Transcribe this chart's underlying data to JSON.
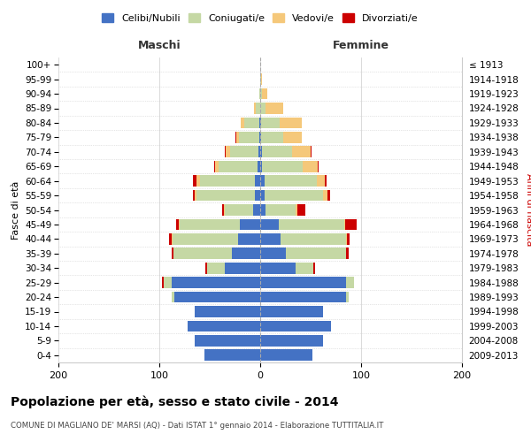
{
  "age_groups": [
    "0-4",
    "5-9",
    "10-14",
    "15-19",
    "20-24",
    "25-29",
    "30-34",
    "35-39",
    "40-44",
    "45-49",
    "50-54",
    "55-59",
    "60-64",
    "65-69",
    "70-74",
    "75-79",
    "80-84",
    "85-89",
    "90-94",
    "95-99",
    "100+"
  ],
  "birth_years": [
    "2009-2013",
    "2004-2008",
    "1999-2003",
    "1994-1998",
    "1989-1993",
    "1984-1988",
    "1979-1983",
    "1974-1978",
    "1969-1973",
    "1964-1968",
    "1959-1963",
    "1954-1958",
    "1949-1953",
    "1944-1948",
    "1939-1943",
    "1934-1938",
    "1929-1933",
    "1924-1928",
    "1919-1923",
    "1914-1918",
    "≤ 1913"
  ],
  "maschi": {
    "celibi": [
      55,
      65,
      72,
      65,
      85,
      88,
      35,
      28,
      22,
      20,
      7,
      5,
      5,
      3,
      2,
      1,
      1,
      0,
      0,
      0,
      0
    ],
    "coniugati": [
      0,
      0,
      0,
      0,
      3,
      8,
      18,
      58,
      65,
      60,
      28,
      58,
      55,
      38,
      28,
      20,
      15,
      4,
      1,
      0,
      0
    ],
    "vedovi": [
      0,
      0,
      0,
      0,
      0,
      0,
      0,
      0,
      1,
      1,
      1,
      2,
      3,
      4,
      4,
      3,
      3,
      2,
      0,
      0,
      0
    ],
    "divorziati": [
      0,
      0,
      0,
      0,
      0,
      1,
      1,
      2,
      2,
      2,
      2,
      2,
      4,
      1,
      1,
      1,
      0,
      0,
      0,
      0,
      0
    ]
  },
  "femmine": {
    "nubili": [
      52,
      62,
      70,
      62,
      85,
      85,
      35,
      25,
      20,
      18,
      5,
      4,
      4,
      2,
      2,
      1,
      1,
      0,
      0,
      0,
      0
    ],
    "coniugate": [
      0,
      0,
      0,
      0,
      3,
      8,
      18,
      60,
      65,
      65,
      30,
      58,
      52,
      40,
      30,
      22,
      18,
      5,
      2,
      1,
      0
    ],
    "vedove": [
      0,
      0,
      0,
      0,
      0,
      0,
      0,
      0,
      1,
      1,
      2,
      5,
      8,
      15,
      18,
      18,
      22,
      18,
      5,
      1,
      0
    ],
    "divorziate": [
      0,
      0,
      0,
      0,
      0,
      0,
      1,
      3,
      3,
      12,
      8,
      2,
      2,
      1,
      1,
      0,
      0,
      0,
      0,
      0,
      0
    ]
  },
  "colors": {
    "celibi": "#4472c4",
    "coniugati": "#c5d8a4",
    "vedovi": "#f5c87a",
    "divorziati": "#cc0000"
  },
  "xlim": [
    -200,
    200
  ],
  "xticks": [
    -200,
    -100,
    0,
    100,
    200
  ],
  "xtick_labels": [
    "200",
    "100",
    "0",
    "100",
    "200"
  ],
  "title": "Popolazione per età, sesso e stato civile - 2014",
  "subtitle": "COMUNE DI MAGLIANO DE' MARSI (AQ) - Dati ISTAT 1° gennaio 2014 - Elaborazione TUTTITALIA.IT",
  "ylabel_left": "Fasce di età",
  "ylabel_right": "Anni di nascita",
  "header_maschi": "Maschi",
  "header_femmine": "Femmine",
  "bg_color": "#ffffff",
  "grid_color": "#cccccc"
}
